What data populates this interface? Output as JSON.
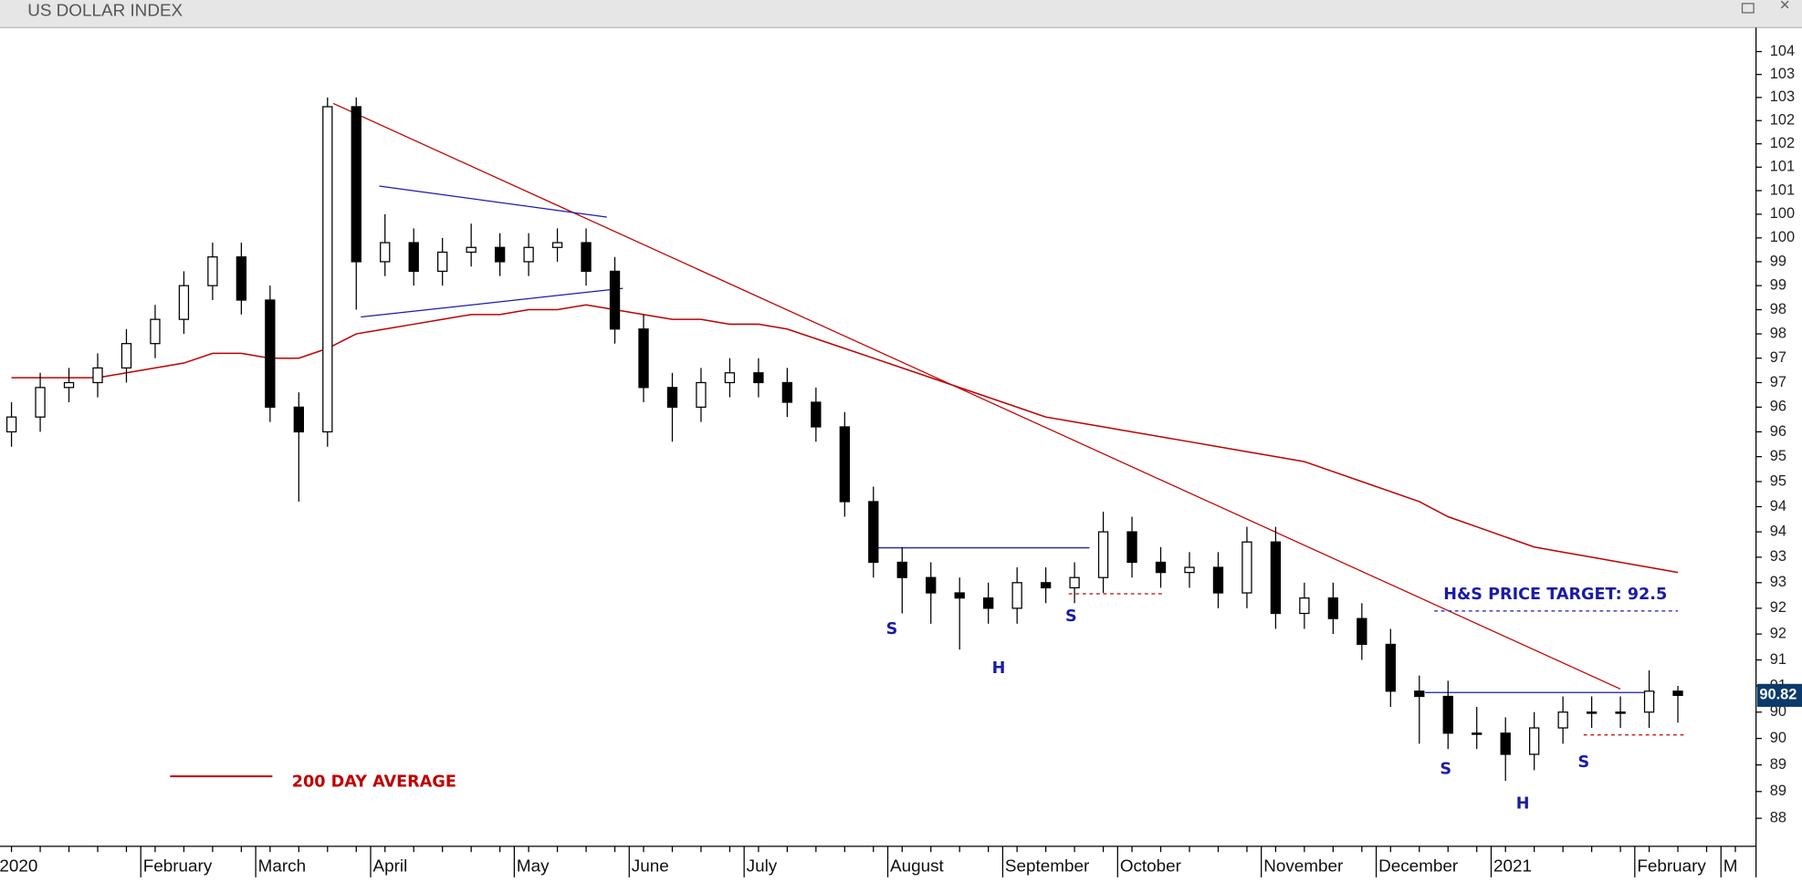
{
  "chart_data": {
    "type": "candlestick",
    "title": "US DOLLAR INDEX",
    "log": true,
    "categories": [
      "2020",
      null,
      null,
      null,
      null,
      "February",
      null,
      null,
      null,
      "March",
      null,
      null,
      null,
      "April",
      null,
      null,
      null,
      null,
      "May",
      null,
      null,
      null,
      "June",
      null,
      null,
      null,
      "July",
      null,
      null,
      null,
      null,
      "August",
      null,
      null,
      null,
      "September",
      null,
      null,
      null,
      "October",
      null,
      null,
      null,
      null,
      "November",
      null,
      null,
      null,
      "December",
      null,
      null,
      null,
      "2021",
      null,
      null,
      null,
      null,
      "February",
      null,
      null,
      "M"
    ],
    "open": [
      96.0,
      96.3,
      96.9,
      97.0,
      97.3,
      97.8,
      98.3,
      99.0,
      99.6,
      98.7,
      96.5,
      96.0,
      102.8,
      99.5,
      99.9,
      99.3,
      99.7,
      99.8,
      99.5,
      99.8,
      99.9,
      99.3,
      98.1,
      96.9,
      96.5,
      97.0,
      97.2,
      97.0,
      96.6,
      96.1,
      94.6,
      93.4,
      93.1,
      92.8,
      92.7,
      92.5,
      93.0,
      92.9,
      93.1,
      94.0,
      93.4,
      93.2,
      93.3,
      92.8,
      93.8,
      92.4,
      92.7,
      92.3,
      91.8,
      90.9,
      90.8,
      90.1,
      90.1,
      89.7,
      90.2,
      90.5,
      90.5,
      90.5,
      90.9,
      null,
      null
    ],
    "high": [
      96.6,
      97.2,
      97.3,
      97.6,
      98.1,
      98.6,
      99.3,
      99.9,
      99.9,
      99.0,
      96.8,
      103.0,
      103.0,
      100.5,
      100.2,
      100.0,
      100.3,
      100.1,
      100.1,
      100.2,
      100.2,
      99.6,
      98.4,
      97.2,
      97.3,
      97.5,
      97.5,
      97.3,
      96.9,
      96.4,
      94.9,
      93.7,
      93.4,
      93.1,
      93.0,
      93.3,
      93.3,
      93.4,
      94.4,
      94.3,
      93.7,
      93.6,
      93.6,
      94.1,
      94.1,
      93.0,
      93.0,
      92.6,
      92.1,
      91.2,
      91.1,
      90.6,
      90.4,
      90.5,
      90.8,
      90.8,
      90.8,
      91.3,
      91.0,
      null,
      null
    ],
    "low": [
      95.7,
      96.0,
      96.6,
      96.7,
      97.0,
      97.5,
      98.0,
      98.7,
      98.4,
      96.2,
      94.6,
      95.7,
      98.5,
      99.2,
      99.0,
      99.0,
      99.4,
      99.2,
      99.2,
      99.5,
      99.0,
      97.8,
      96.6,
      95.8,
      96.2,
      96.7,
      96.7,
      96.3,
      95.8,
      94.3,
      93.1,
      92.4,
      92.2,
      91.7,
      92.2,
      92.2,
      92.6,
      92.6,
      92.8,
      93.1,
      92.9,
      92.9,
      92.5,
      92.5,
      92.1,
      92.1,
      92.0,
      91.5,
      90.6,
      89.9,
      89.8,
      89.8,
      89.2,
      89.4,
      89.9,
      90.2,
      90.2,
      90.2,
      90.3,
      null,
      null
    ],
    "close": [
      96.3,
      96.9,
      97.0,
      97.3,
      97.8,
      98.3,
      99.0,
      99.6,
      98.7,
      96.5,
      96.0,
      102.8,
      99.5,
      99.9,
      99.3,
      99.7,
      99.8,
      99.5,
      99.8,
      99.9,
      99.3,
      98.1,
      96.9,
      96.5,
      97.0,
      97.2,
      97.0,
      96.6,
      96.1,
      94.6,
      93.4,
      93.1,
      92.8,
      92.7,
      92.5,
      93.0,
      92.9,
      93.1,
      94.0,
      93.4,
      93.2,
      93.3,
      92.8,
      93.8,
      92.4,
      92.7,
      92.3,
      91.8,
      90.9,
      90.8,
      90.1,
      90.1,
      89.7,
      90.2,
      90.5,
      90.5,
      90.5,
      90.9,
      90.82,
      null,
      null
    ],
    "series": [
      {
        "name": "200 DAY AVERAGE",
        "color": "#c00000",
        "values": [
          97.1,
          97.1,
          97.1,
          97.1,
          97.2,
          97.3,
          97.4,
          97.6,
          97.6,
          97.5,
          97.5,
          97.7,
          98.0,
          98.1,
          98.2,
          98.3,
          98.4,
          98.4,
          98.5,
          98.5,
          98.6,
          98.5,
          98.4,
          98.3,
          98.3,
          98.2,
          98.2,
          98.1,
          97.9,
          97.7,
          97.5,
          97.3,
          97.1,
          96.9,
          96.7,
          96.5,
          96.3,
          96.2,
          96.1,
          96.0,
          95.9,
          95.8,
          95.7,
          95.6,
          95.5,
          95.4,
          95.2,
          95.0,
          94.8,
          94.6,
          94.3,
          94.1,
          93.9,
          93.7,
          93.6,
          93.5,
          93.4,
          93.3,
          93.2,
          null,
          null
        ]
      }
    ],
    "last_value": 90.82,
    "ylim": [
      88.0,
      104.5
    ],
    "yticks": [
      {
        "value": 88.5,
        "label": "88"
      },
      89,
      {
        "value": 89.5,
        "label": "89"
      },
      90,
      {
        "value": 90.5,
        "label": "90"
      },
      91,
      {
        "value": 91.5,
        "label": "91"
      },
      92,
      {
        "value": 92.5,
        "label": "92"
      },
      93,
      {
        "value": 93.5,
        "label": "93"
      },
      94,
      {
        "value": 94.5,
        "label": "94"
      },
      95,
      {
        "value": 95.5,
        "label": "95"
      },
      96,
      {
        "value": 96.5,
        "label": "96"
      },
      97,
      {
        "value": 97.5,
        "label": "97"
      },
      98,
      {
        "value": 98.5,
        "label": "98"
      },
      99,
      {
        "value": 99.5,
        "label": "99"
      },
      100,
      {
        "value": 100.5,
        "label": "100"
      },
      101,
      {
        "value": 101.5,
        "label": "101"
      },
      102,
      {
        "value": 102.5,
        "label": "102"
      },
      103,
      {
        "value": 103.5,
        "label": "103"
      },
      104
    ],
    "annotations": [
      "S",
      "H",
      "S",
      "S",
      "H",
      "S",
      "H&S PRICE TARGET: 92.5"
    ]
  }
}
